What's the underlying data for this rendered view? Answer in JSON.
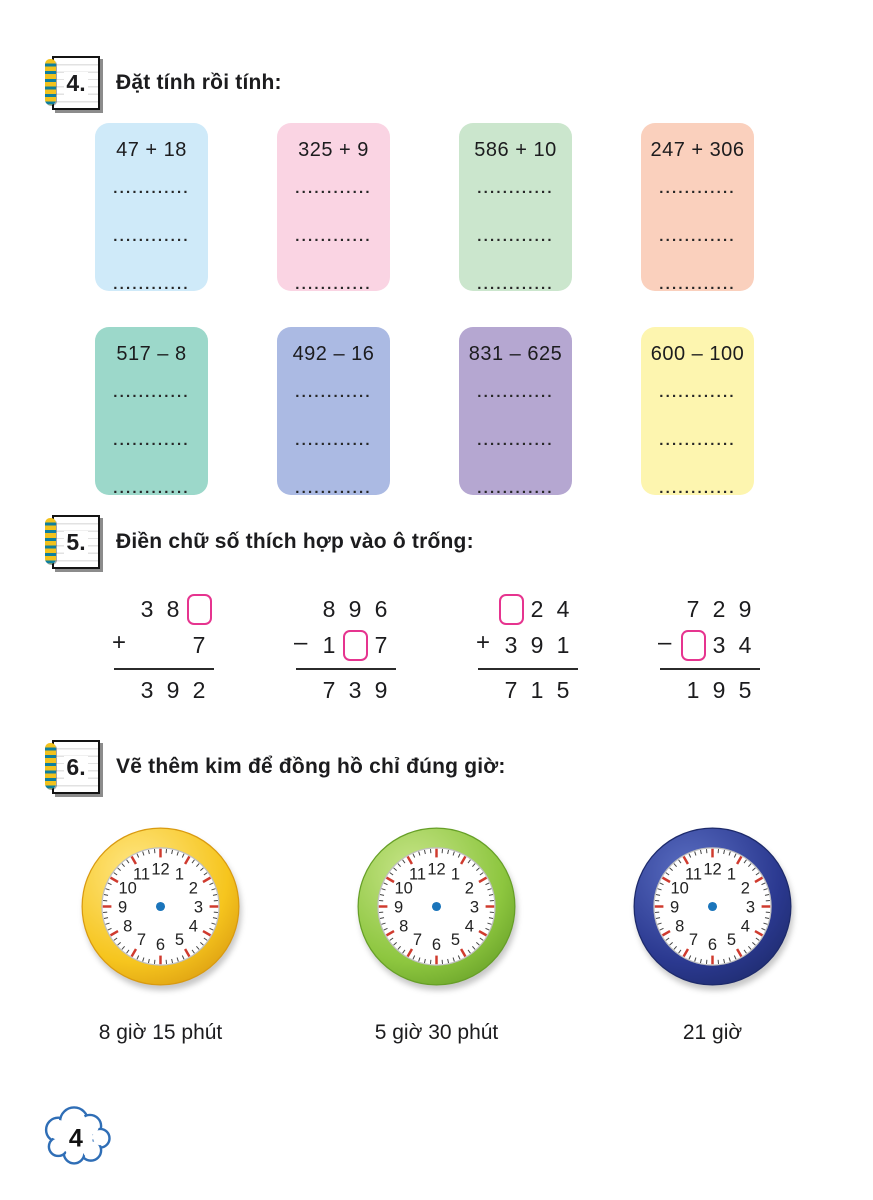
{
  "page_number": "4",
  "colors": {
    "text": "#1c1c1e",
    "box_border": "#e6348f",
    "cloud_outline": "#2f6eb6"
  },
  "exercise4": {
    "number": "4.",
    "title": "Đặt tính rồi tính:",
    "dots": "............",
    "cards": [
      {
        "expr": "47 + 18",
        "bg": "#cfeaf9"
      },
      {
        "expr": "325 + 9",
        "bg": "#fad4e3"
      },
      {
        "expr": "586 + 10",
        "bg": "#cbe6cd"
      },
      {
        "expr": "247 + 306",
        "bg": "#fad0bd"
      },
      {
        "expr": "517 – 8",
        "bg": "#9cd8ca"
      },
      {
        "expr": "492 – 16",
        "bg": "#abbae3"
      },
      {
        "expr": "831 – 625",
        "bg": "#b5a7d1"
      },
      {
        "expr": "600 – 100",
        "bg": "#fdf5af"
      }
    ]
  },
  "exercise5": {
    "number": "5.",
    "title": "Điền chữ số thích hợp vào ô trống:",
    "problems": [
      {
        "operator": "+",
        "top": [
          "3",
          "8",
          "□"
        ],
        "bottom": [
          "",
          "",
          "7"
        ],
        "result": [
          "3",
          "9",
          "2"
        ]
      },
      {
        "operator": "–",
        "top": [
          "8",
          "9",
          "6"
        ],
        "bottom": [
          "1",
          "□",
          "7"
        ],
        "result": [
          "7",
          "3",
          "9"
        ]
      },
      {
        "operator": "+",
        "top": [
          "□",
          "2",
          "4"
        ],
        "bottom": [
          "3",
          "9",
          "1"
        ],
        "result": [
          "7",
          "1",
          "5"
        ]
      },
      {
        "operator": "–",
        "top": [
          "7",
          "2",
          "9"
        ],
        "bottom": [
          "□",
          "3",
          "4"
        ],
        "result": [
          "1",
          "9",
          "5"
        ]
      }
    ]
  },
  "exercise6": {
    "number": "6.",
    "title": "Vẽ thêm kim để đồng hồ chỉ đúng giờ:",
    "hour_tick_color": "#cf3a2e",
    "minute_tick_color": "#444444",
    "center_dot_color": "#1b75bb",
    "clocks": [
      {
        "label": "8 giờ 15 phút",
        "rim_light": "#ffe786",
        "rim_color": "#f6c51e",
        "rim_dark": "#d99a10"
      },
      {
        "label": "5 giờ 30 phút",
        "rim_light": "#c8e58a",
        "rim_color": "#8dc63f",
        "rim_dark": "#669f27"
      },
      {
        "label": "21 giờ",
        "rim_light": "#5a6ec2",
        "rim_color": "#2b3990",
        "rim_dark": "#1d2a6b"
      }
    ]
  }
}
